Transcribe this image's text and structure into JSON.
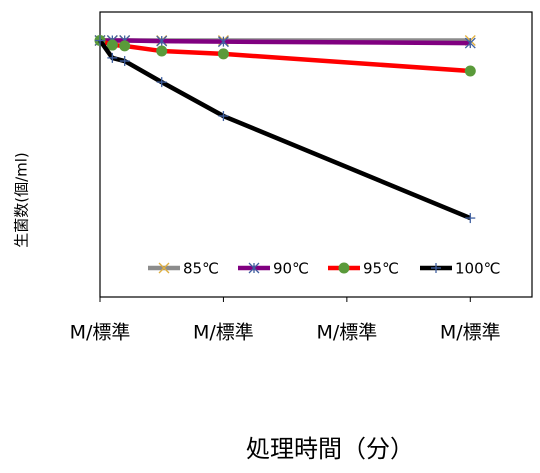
{
  "chart_data": {
    "type": "line",
    "x_label": "処理時間（分）",
    "y_label": "生菌数(個/ml)",
    "xlim": [
      0,
      35
    ],
    "xticks": [
      {
        "value": 0,
        "label": "M/標準"
      },
      {
        "value": 10,
        "label": "M/標準"
      },
      {
        "value": 20,
        "label": "M/標準"
      },
      {
        "value": 30,
        "label": "M/標準"
      }
    ],
    "ylim": [
      0,
      100
    ],
    "legend": "bottom",
    "series": [
      {
        "name": "85℃",
        "color": "#8c8c8c",
        "marker": "x",
        "marker_color": "#e0b040",
        "x": [
          0,
          1,
          2,
          5,
          10,
          30
        ],
        "values": [
          90,
          90,
          90,
          90,
          90,
          90
        ]
      },
      {
        "name": "90℃",
        "color": "#800080",
        "marker": "star",
        "marker_color": "#4060a0",
        "x": [
          0,
          1,
          2,
          5,
          10,
          30
        ],
        "values": [
          90,
          90,
          90,
          89.8,
          89.6,
          89.1
        ]
      },
      {
        "name": "95℃",
        "color": "#ff0000",
        "marker": "circle",
        "marker_color": "#5a9a3a",
        "x": [
          0,
          1,
          2,
          5,
          10,
          30
        ],
        "values": [
          90,
          88.4,
          88.1,
          86.3,
          85.3,
          79.3
        ]
      },
      {
        "name": "100℃",
        "color": "#000000",
        "marker": "plus",
        "marker_color": "#4060a0",
        "x": [
          0,
          1,
          2,
          5,
          10,
          30
        ],
        "values": [
          90,
          83.9,
          82.8,
          75.4,
          63.5,
          27.7
        ]
      }
    ]
  }
}
